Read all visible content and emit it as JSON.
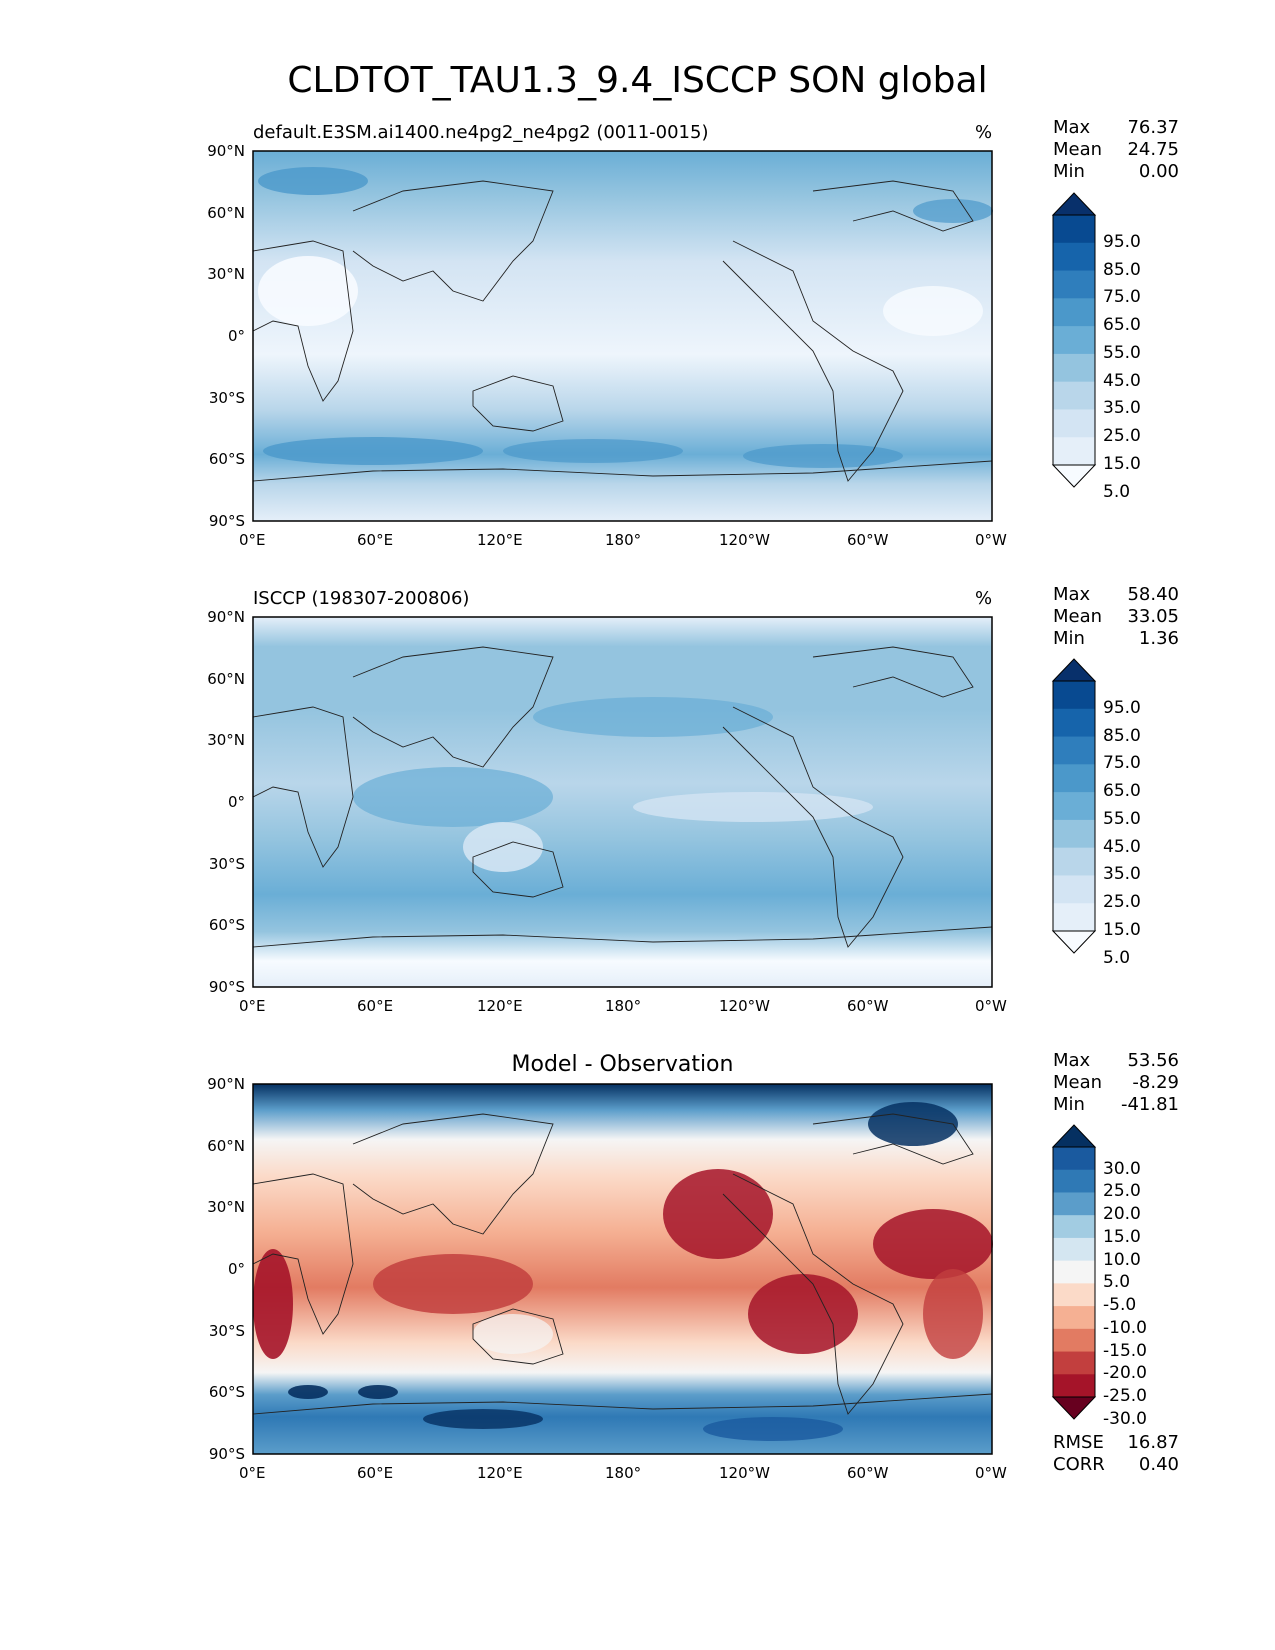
{
  "figure": {
    "title": "CLDTOT_TAU1.3_9.4_ISCCP SON global"
  },
  "axes": {
    "lat_ticks": [
      "90°N",
      "60°N",
      "30°N",
      "0°",
      "30°S",
      "60°S",
      "90°S"
    ],
    "lon_ticks": [
      "0°E",
      "60°E",
      "120°E",
      "180°",
      "120°W",
      "60°W",
      "0°W"
    ]
  },
  "panels": [
    {
      "title": "default.E3SM.ai1400.ne4pg2_ne4pg2 (0011-0015)",
      "units": "%",
      "stats": [
        {
          "label": "Max",
          "value": "76.37"
        },
        {
          "label": "Mean",
          "value": "24.75"
        },
        {
          "label": "Min",
          "value": "0.00"
        }
      ],
      "colorbar": {
        "levels": [
          "95.0",
          "85.0",
          "75.0",
          "65.0",
          "55.0",
          "45.0",
          "35.0",
          "25.0",
          "15.0",
          "5.0"
        ],
        "colors": [
          "#08306b",
          "#084a91",
          "#1664ab",
          "#2f7ebc",
          "#4b98ca",
          "#6aaed6",
          "#94c4df",
          "#b9d6ea",
          "#d3e4f3",
          "#e5eff9",
          "#f7fbff"
        ]
      }
    },
    {
      "title": "ISCCP (198307-200806)",
      "units": "%",
      "stats": [
        {
          "label": "Max",
          "value": "58.40"
        },
        {
          "label": "Mean",
          "value": "33.05"
        },
        {
          "label": "Min",
          "value": "1.36"
        }
      ],
      "colorbar": {
        "levels": [
          "95.0",
          "85.0",
          "75.0",
          "65.0",
          "55.0",
          "45.0",
          "35.0",
          "25.0",
          "15.0",
          "5.0"
        ],
        "colors": [
          "#08306b",
          "#084a91",
          "#1664ab",
          "#2f7ebc",
          "#4b98ca",
          "#6aaed6",
          "#94c4df",
          "#b9d6ea",
          "#d3e4f3",
          "#e5eff9",
          "#f7fbff"
        ]
      }
    },
    {
      "title": "Model - Observation",
      "units": "",
      "stats": [
        {
          "label": "Max",
          "value": "53.56"
        },
        {
          "label": "Mean",
          "value": "-8.29"
        },
        {
          "label": "Min",
          "value": "-41.81"
        }
      ],
      "extra_stats": [
        {
          "label": "RMSE",
          "value": "16.87"
        },
        {
          "label": "CORR",
          "value": "0.40"
        }
      ],
      "colorbar": {
        "levels": [
          "30.0",
          "25.0",
          "20.0",
          "15.0",
          "10.0",
          "5.0",
          "-5.0",
          "-10.0",
          "-15.0",
          "-20.0",
          "-25.0",
          "-30.0"
        ],
        "colors": [
          "#053061",
          "#1a5a9f",
          "#2f79b5",
          "#5b9dca",
          "#a2cce2",
          "#d4e6f1",
          "#f5f5f5",
          "#fbdac8",
          "#f5b093",
          "#e27b62",
          "#c23f3e",
          "#a51429",
          "#67001f"
        ]
      }
    }
  ]
}
